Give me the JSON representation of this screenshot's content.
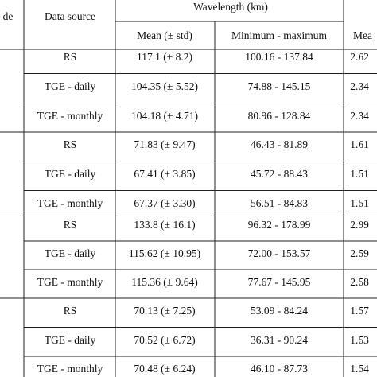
{
  "table": {
    "header": {
      "mode": "de",
      "data_source": "Data source",
      "wavelength": "Wavelength (km)",
      "mean": "Mean (± std)",
      "minmax": "Minimum - maximum",
      "last": "Mea"
    },
    "rows": [
      [
        "RS",
        "117.1 (± 8.2)",
        "100.16 - 137.84",
        "2.62"
      ],
      [
        "TGE - daily",
        "104.35 (± 5.52)",
        "74.88 - 145.15",
        "2.34"
      ],
      [
        "TGE - monthly",
        "104.18 (± 4.71)",
        "80.96 - 128.84",
        "2.34"
      ],
      [
        "RS",
        "71.83 (± 9.47)",
        "46.43 - 81.89",
        "1.61"
      ],
      [
        "TGE - daily",
        "67.41 (± 3.85)",
        "45.72 - 88.43",
        "1.51"
      ],
      [
        "TGE - monthly",
        "67.37 (± 3.30)",
        "56.51 - 84.83",
        "1.51"
      ],
      [
        "RS",
        "133.8 (± 16.1)",
        "96.32 - 178.99",
        "2.99"
      ],
      [
        "TGE - daily",
        "115.62 (± 10.95)",
        "72.00 - 153.57",
        "2.59"
      ],
      [
        "TGE - monthly",
        "115.36 (± 9.64)",
        "77.67 - 145.95",
        "2.58"
      ],
      [
        "RS",
        "70.13 (± 7.25)",
        "53.09 - 84.24",
        "1.57"
      ],
      [
        "TGE - daily",
        "70.52 (± 6.72)",
        "36.31 - 90.24",
        "1.53"
      ],
      [
        "TGE - monthly",
        "70.48 (± 6.24)",
        "46.10 - 87.73",
        "1.54"
      ]
    ]
  }
}
